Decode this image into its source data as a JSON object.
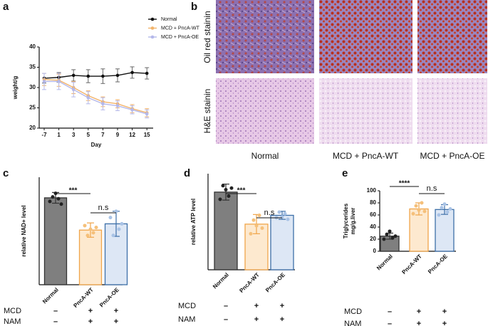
{
  "panel_labels": [
    "a",
    "b",
    "c",
    "d",
    "e"
  ],
  "chart_data": [
    {
      "type": "line",
      "xlabel": "Day",
      "ylabel": "weight/g",
      "categories": [
        "-7",
        "1",
        "3",
        "5",
        "7",
        "9",
        "12",
        "15"
      ],
      "ylim": [
        20,
        40
      ],
      "yticks": [
        20,
        25,
        30,
        35,
        40
      ],
      "series": [
        {
          "name": "Normal",
          "color": "#111111",
          "values": [
            32.3,
            32.5,
            33,
            32.8,
            32.8,
            33,
            33.7,
            33.5
          ],
          "errors": [
            1.2,
            1.2,
            1.4,
            1.6,
            1.8,
            1.6,
            1.4,
            1.4
          ]
        },
        {
          "name": "MCD + PncA-WT",
          "color": "#f2b36a",
          "values": [
            32,
            31.8,
            30,
            28,
            26.5,
            26,
            24.8,
            23.8
          ],
          "errors": [
            1.5,
            1.5,
            1.5,
            1.2,
            1.2,
            1,
            1,
            1
          ]
        },
        {
          "name": "MCD + PncA-OE",
          "color": "#b4b8ea",
          "values": [
            31.5,
            31.5,
            29.5,
            27.5,
            26,
            25.5,
            24.5,
            23.5
          ],
          "errors": [
            2,
            2,
            1.8,
            1.5,
            1.5,
            1.2,
            1,
            1
          ]
        }
      ]
    },
    {
      "type": "bar",
      "ylabel": [
        "relative NAD+ level"
      ],
      "categories": [
        "Normal",
        "PncA-WT",
        "PncA-OE"
      ],
      "values": [
        0.97,
        0.61,
        0.68
      ],
      "errors": [
        0.06,
        0.08,
        0.14
      ],
      "points": [
        [
          0.93,
          0.98,
          1.02,
          0.96,
          0.9
        ],
        [
          0.66,
          0.55,
          0.62,
          0.58,
          0.64
        ],
        [
          0.75,
          0.55,
          0.82,
          0.62,
          0.68
        ]
      ],
      "colors": [
        "#7f7f7f",
        "#fde9cf",
        "#dde7f5"
      ],
      "edge_colors": [
        "#333333",
        "#f0a54a",
        "#3d6fa8"
      ],
      "ylim": [
        0,
        1.2
      ],
      "annotations": [
        "***",
        "n.s"
      ],
      "treatments": [
        {
          "name": "MCD",
          "signs": [
            "–",
            "+",
            "+"
          ]
        },
        {
          "name": "NAM",
          "signs": [
            "–",
            "+",
            "+"
          ]
        }
      ]
    },
    {
      "type": "bar",
      "ylabel": [
        "relative ATP level"
      ],
      "categories": [
        "Normal",
        "PncA-WT",
        "PncA-OE"
      ],
      "values": [
        0.97,
        0.57,
        0.68
      ],
      "errors": [
        0.1,
        0.12,
        0.05
      ],
      "points": [
        [
          0.88,
          1.05,
          1.0,
          0.92,
          1.02
        ],
        [
          0.45,
          0.62,
          0.55,
          0.68,
          0.52
        ],
        [
          0.65,
          0.72,
          0.66,
          0.7,
          0.63
        ]
      ],
      "colors": [
        "#7f7f7f",
        "#fde9cf",
        "#dde7f5"
      ],
      "edge_colors": [
        "#333333",
        "#f0a54a",
        "#3d6fa8"
      ],
      "ylim": [
        0,
        1.2
      ],
      "annotations": [
        "***",
        "n.s"
      ],
      "treatments": [
        {
          "name": "MCD",
          "signs": [
            "–",
            "+",
            "+"
          ]
        },
        {
          "name": "NAM",
          "signs": [
            "–",
            "+",
            "+"
          ]
        }
      ]
    },
    {
      "type": "bar",
      "ylabel": [
        "Triglycerides",
        "mg/g.liver"
      ],
      "categories": [
        "Normal",
        "PncA-WT",
        "PncA-OE"
      ],
      "values": [
        25,
        70,
        69
      ],
      "errors": [
        5,
        10,
        8
      ],
      "points": [
        [
          20,
          28,
          33,
          22,
          25
        ],
        [
          62,
          75,
          68,
          80,
          66
        ],
        [
          60,
          72,
          78,
          65,
          70
        ]
      ],
      "colors": [
        "#7f7f7f",
        "#fde9cf",
        "#dde7f5"
      ],
      "edge_colors": [
        "#333333",
        "#f0a54a",
        "#3d6fa8"
      ],
      "ylim": [
        0,
        100
      ],
      "yticks": [
        0,
        20,
        40,
        60,
        80,
        100
      ],
      "annotations": [
        "****",
        "n.s"
      ],
      "treatments": [
        {
          "name": "MCD",
          "signs": [
            "–",
            "+",
            "+"
          ]
        },
        {
          "name": "NAM",
          "signs": [
            "–",
            "+",
            "+"
          ]
        }
      ]
    }
  ],
  "histology": {
    "rows": [
      "Oil red stainin",
      "H&E stainin"
    ],
    "columns": [
      "Normal",
      "MCD + PncA-WT",
      "MCD + PncA-OE"
    ]
  }
}
